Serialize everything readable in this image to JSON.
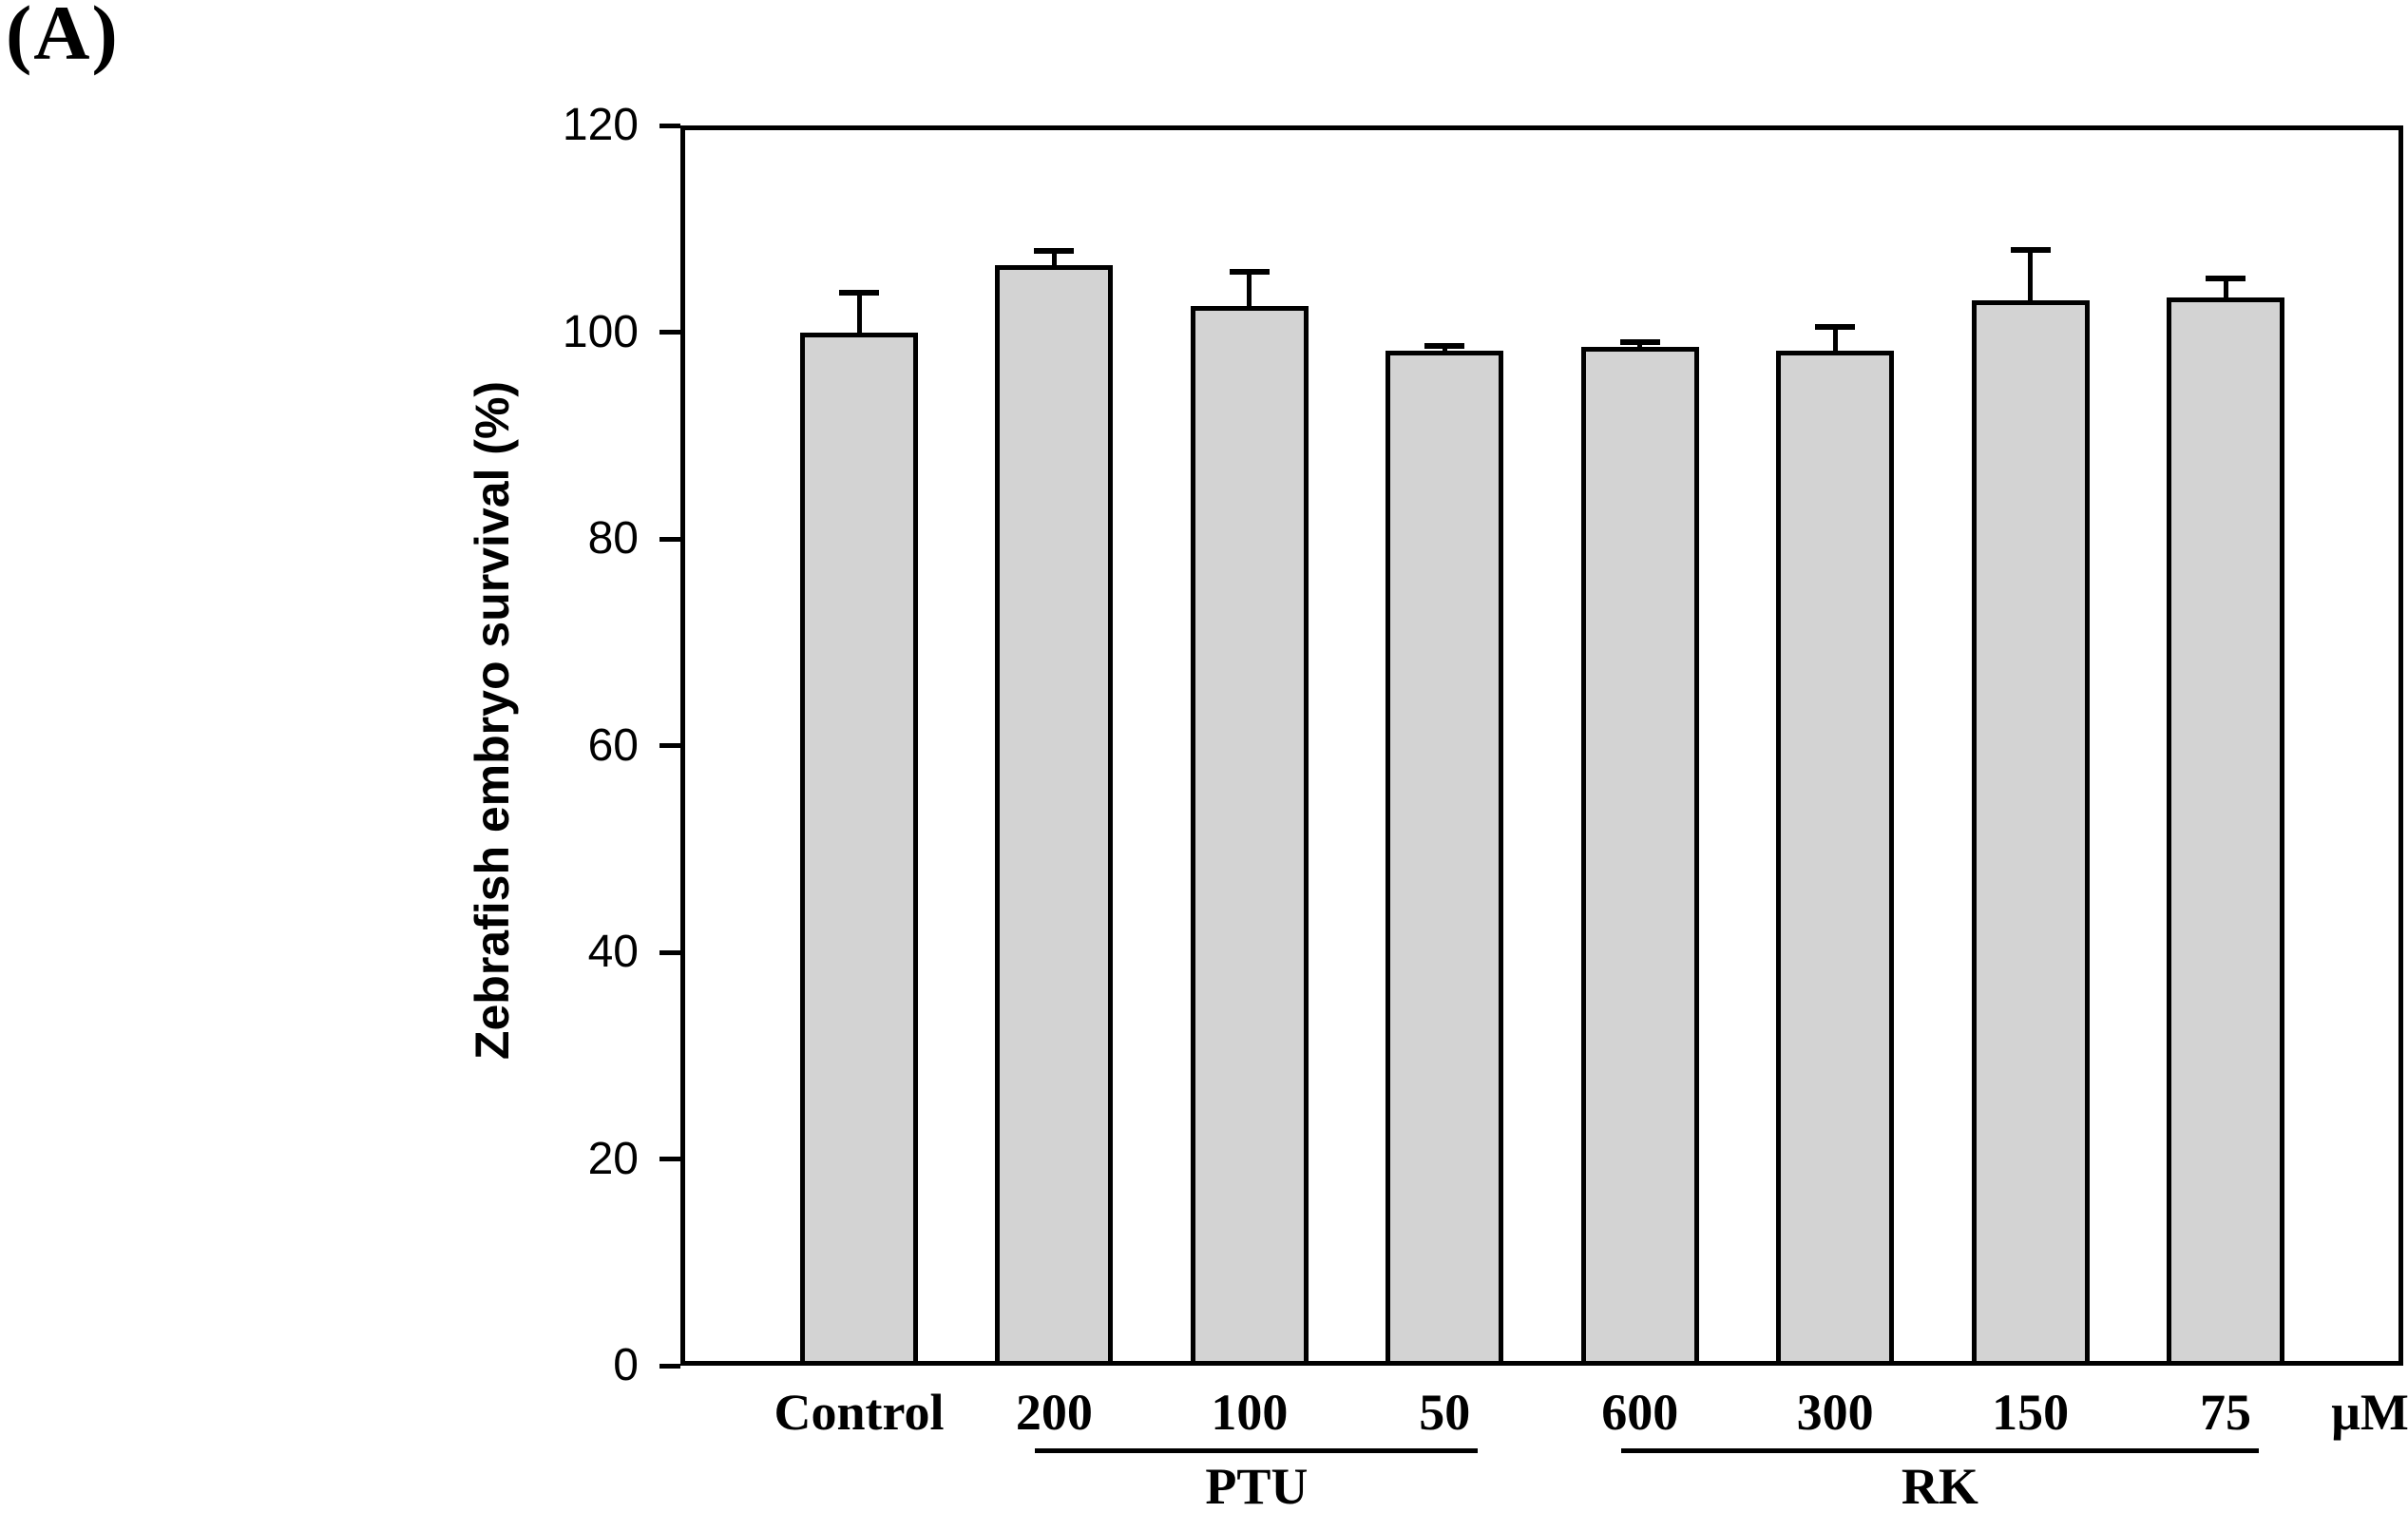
{
  "panel_label": "(A)",
  "chart_data": {
    "type": "bar",
    "title": "",
    "ylabel": "Zebrafish embryo survival (%)",
    "xlabel": "",
    "x_unit_label": "μM",
    "ylim": [
      0,
      120
    ],
    "yticks": [
      0,
      20,
      40,
      60,
      80,
      100,
      120
    ],
    "grid": false,
    "legend": null,
    "categories": [
      "Control",
      "200",
      "100",
      "50",
      "600",
      "300",
      "150",
      "75"
    ],
    "values": [
      100.0,
      106.5,
      102.5,
      98.2,
      98.6,
      98.2,
      103.1,
      103.4
    ],
    "errors_plus": [
      4.1,
      1.6,
      3.6,
      0.7,
      0.7,
      2.6,
      5.1,
      2.1
    ],
    "groups": [
      {
        "label": "PTU",
        "start_index": 1,
        "end_index": 3
      },
      {
        "label": "RK",
        "start_index": 4,
        "end_index": 7
      }
    ],
    "bar_fill": "#d3d3d3",
    "bar_outline": "#000000",
    "axis_color": "#000000"
  }
}
